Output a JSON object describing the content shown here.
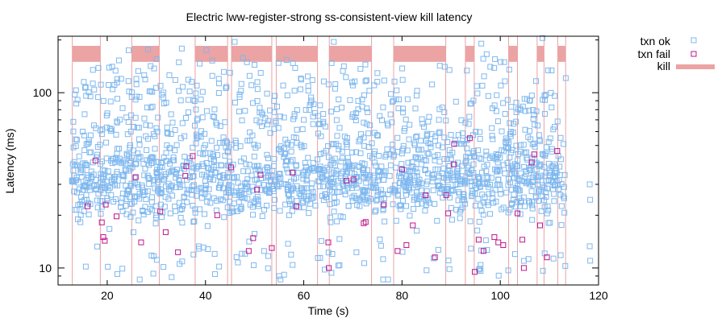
{
  "chart_data": {
    "type": "scatter",
    "title": "Electric lww-register-strong ss-consistent-view kill latency",
    "xlabel": "Time (s)",
    "ylabel": "Latency (ms)",
    "xlim": [
      10,
      120
    ],
    "ylim": [
      8,
      210
    ],
    "y_scale": "log",
    "grid": false,
    "legend_position": "outside-top-right",
    "x_ticks": [
      20,
      40,
      60,
      80,
      100,
      120
    ],
    "y_ticks": [
      10,
      100
    ],
    "series": [
      {
        "name": "txn ok",
        "color": "#7fb8ef",
        "marker": "square"
      },
      {
        "name": "txn fail",
        "color": "#c0168c",
        "marker": "square"
      }
    ],
    "kill_series": {
      "name": "kill",
      "color": "#eba3a3",
      "intervals": [
        [
          12.9,
          18.6
        ],
        [
          25.0,
          30.6
        ],
        [
          37.9,
          44.5
        ],
        [
          45.3,
          53.5
        ],
        [
          54.4,
          62.8
        ],
        [
          65.2,
          73.8
        ],
        [
          78.3,
          88.9
        ],
        [
          92.9,
          94.7
        ],
        [
          101.7,
          103.5
        ],
        [
          107.5,
          108.9
        ],
        [
          111.7,
          113.3
        ]
      ]
    },
    "txn_ok_sample": [
      [
        13.2,
        31.0
      ],
      [
        15.0,
        60.0
      ],
      [
        17.1,
        135.0
      ],
      [
        20.0,
        25.0
      ],
      [
        22.4,
        48.0
      ],
      [
        26.0,
        95.0
      ],
      [
        30.0,
        20.0
      ],
      [
        35.0,
        55.0
      ],
      [
        40.0,
        28.0
      ],
      [
        45.0,
        130.0
      ],
      [
        50.0,
        38.0
      ],
      [
        55.0,
        9.0
      ],
      [
        60.0,
        70.0
      ],
      [
        65.0,
        32.0
      ],
      [
        70.0,
        110.0
      ],
      [
        75.0,
        26.0
      ],
      [
        80.0,
        45.0
      ],
      [
        85.0,
        30.0
      ],
      [
        90.0,
        22.0
      ],
      [
        95.0,
        60.0
      ],
      [
        100.0,
        28.0
      ],
      [
        103.0,
        12.0
      ],
      [
        106.0,
        30.0
      ],
      [
        108.6,
        205.0
      ],
      [
        110.0,
        35.0
      ],
      [
        113.0,
        25.0
      ],
      [
        118.2,
        30.0
      ],
      [
        118.3,
        24.5
      ],
      [
        118.2,
        13.3
      ],
      [
        118.3,
        11.0
      ]
    ],
    "txn_fail": [
      [
        16.0,
        22.5
      ],
      [
        17.6,
        41.0
      ],
      [
        18.9,
        18.2
      ],
      [
        19.2,
        15.0
      ],
      [
        19.5,
        14.3
      ],
      [
        19.7,
        23.0
      ],
      [
        21.9,
        19.7
      ],
      [
        25.8,
        33.0
      ],
      [
        26.9,
        14.0
      ],
      [
        30.8,
        21.0
      ],
      [
        31.9,
        16.0
      ],
      [
        34.4,
        12.3
      ],
      [
        35.9,
        33.5
      ],
      [
        36.1,
        38.0
      ],
      [
        37.4,
        43.5
      ],
      [
        42.4,
        20.0
      ],
      [
        45.2,
        37.5
      ],
      [
        48.8,
        12.5
      ],
      [
        49.7,
        14.8
      ],
      [
        50.5,
        28.0
      ],
      [
        51.2,
        34.0
      ],
      [
        53.5,
        13.0
      ],
      [
        57.7,
        35.0
      ],
      [
        58.5,
        22.5
      ],
      [
        65.0,
        14.0
      ],
      [
        65.1,
        10.0
      ],
      [
        68.7,
        31.5
      ],
      [
        70.1,
        32.0
      ],
      [
        72.2,
        18.0
      ],
      [
        72.6,
        18.3
      ],
      [
        76.3,
        23.0
      ],
      [
        79.1,
        12.5
      ],
      [
        80.0,
        36.5
      ],
      [
        80.9,
        13.5
      ],
      [
        82.2,
        17.5
      ],
      [
        84.8,
        26.0
      ],
      [
        86.7,
        11.5
      ],
      [
        89.0,
        26.0
      ],
      [
        89.4,
        20.5
      ],
      [
        90.5,
        39.0
      ],
      [
        90.6,
        51.0
      ],
      [
        93.8,
        55.0
      ],
      [
        94.8,
        9.5
      ],
      [
        95.6,
        14.5
      ],
      [
        96.6,
        12.5
      ],
      [
        98.8,
        15.0
      ],
      [
        99.6,
        14.0
      ],
      [
        100.6,
        13.5
      ],
      [
        103.5,
        20.5
      ],
      [
        104.5,
        14.5
      ],
      [
        104.8,
        10.0
      ],
      [
        106.4,
        40.0
      ],
      [
        106.9,
        44.5
      ],
      [
        108.1,
        17.5
      ],
      [
        109.5,
        11.5
      ],
      [
        111.6,
        46.5
      ]
    ]
  }
}
